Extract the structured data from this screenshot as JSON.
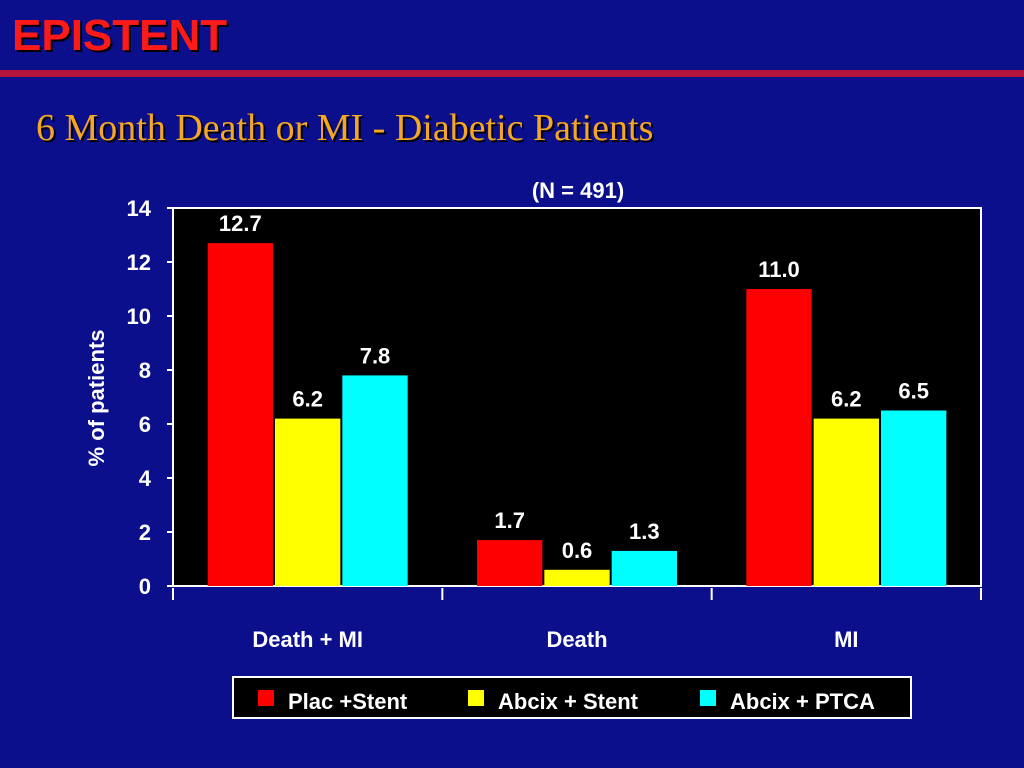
{
  "header": {
    "brand": "EPISTENT",
    "title": "6 Month Death or MI - Diabetic Patients"
  },
  "colors": {
    "background": "#0b0f8c",
    "brand": "#ff1a1a",
    "title": "#f5a623",
    "rule": "#b3143a",
    "plot_background": "#000000"
  },
  "chart_data": {
    "type": "bar",
    "subtitle": "(N = 491)",
    "categories": [
      "Death + MI",
      "Death",
      "MI"
    ],
    "ylabel": "% of patients",
    "xlabel": "",
    "ylim": [
      0,
      14
    ],
    "yticks": [
      0,
      2,
      4,
      6,
      8,
      10,
      12,
      14
    ],
    "grid": false,
    "legend_position": "bottom",
    "series": [
      {
        "name": "Plac +Stent",
        "color": "#ff0000",
        "values": [
          12.7,
          1.7,
          11.0
        ],
        "labels": [
          "12.7",
          "1.7",
          "11.0"
        ]
      },
      {
        "name": "Abcix + Stent",
        "color": "#ffff00",
        "values": [
          6.2,
          0.6,
          6.2
        ],
        "labels": [
          "6.2",
          "0.6",
          "6.2"
        ]
      },
      {
        "name": "Abcix + PTCA",
        "color": "#00ffff",
        "values": [
          7.8,
          1.3,
          6.5
        ],
        "labels": [
          "7.8",
          "1.3",
          "6.5"
        ]
      }
    ]
  }
}
